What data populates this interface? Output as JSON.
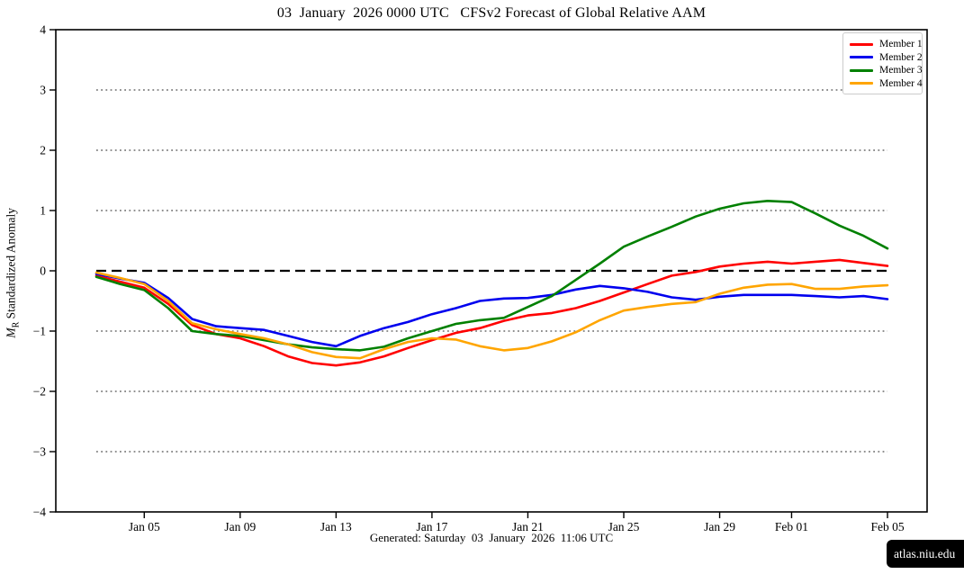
{
  "page": {
    "title": "03  January  2026 0000 UTC   CFSv2 Forecast of Global Relative AAM",
    "footer": "Generated: Saturday  03  January  2026  11:06 UTC",
    "watermark": "atlas.niu.edu"
  },
  "chart_data": {
    "type": "line",
    "title": "03  January  2026 0000 UTC   CFSv2 Forecast of Global Relative AAM",
    "xlabel": "",
    "ylabel": "M_R Standardized Anomaly",
    "ylabel_parts": {
      "var": "M",
      "sub": "R",
      "rest": " Standardized Anomaly"
    },
    "ylim": [
      -4,
      4
    ],
    "x_start_date": "Jan 03",
    "x_end_date": "Feb 05",
    "x_days_span": 33,
    "x_axis": {
      "tick_day_index": [
        2,
        6,
        10,
        14,
        18,
        22,
        26,
        29,
        33
      ],
      "tick_labels": [
        "Jan 05",
        "Jan 09",
        "Jan 13",
        "Jan 17",
        "Jan 21",
        "Jan 25",
        "Jan 29",
        "Feb 01",
        "Feb 05"
      ]
    },
    "y_axis": {
      "tick_values": [
        4,
        3,
        2,
        1,
        0,
        -1,
        -2,
        -3,
        -4
      ],
      "tick_labels": [
        "4",
        "3",
        "2",
        "1",
        "0",
        "−1",
        "−2",
        "−3",
        "−4"
      ]
    },
    "grid": {
      "dotted_values": [
        3,
        2,
        1,
        -1,
        -2,
        -3
      ],
      "dotted_color": "#808080",
      "zero_line_dashed": true,
      "zero_line_color": "#000000"
    },
    "legend_position": "top-right",
    "series": [
      {
        "name": "Member 1",
        "color": "#ff0000",
        "values": [
          -0.08,
          -0.18,
          -0.28,
          -0.55,
          -0.9,
          -1.05,
          -1.12,
          -1.25,
          -1.42,
          -1.53,
          -1.57,
          -1.52,
          -1.42,
          -1.28,
          -1.15,
          -1.03,
          -0.95,
          -0.83,
          -0.74,
          -0.7,
          -0.62,
          -0.5,
          -0.36,
          -0.22,
          -0.08,
          -0.02,
          0.07,
          0.12,
          0.15,
          0.12,
          0.15,
          0.18,
          0.13,
          0.08
        ]
      },
      {
        "name": "Member 2",
        "color": "#0000ee",
        "values": [
          -0.05,
          -0.13,
          -0.2,
          -0.45,
          -0.8,
          -0.92,
          -0.95,
          -0.98,
          -1.08,
          -1.18,
          -1.25,
          -1.08,
          -0.95,
          -0.85,
          -0.72,
          -0.62,
          -0.5,
          -0.46,
          -0.45,
          -0.4,
          -0.31,
          -0.25,
          -0.29,
          -0.35,
          -0.44,
          -0.48,
          -0.43,
          -0.4,
          -0.4,
          -0.4,
          -0.42,
          -0.44,
          -0.42,
          -0.47
        ]
      },
      {
        "name": "Member 3",
        "color": "#008000",
        "values": [
          -0.1,
          -0.22,
          -0.32,
          -0.62,
          -1.0,
          -1.05,
          -1.08,
          -1.15,
          -1.22,
          -1.27,
          -1.3,
          -1.32,
          -1.26,
          -1.12,
          -1.0,
          -0.88,
          -0.82,
          -0.78,
          -0.6,
          -0.42,
          -0.15,
          0.12,
          0.4,
          0.57,
          0.73,
          0.9,
          1.03,
          1.12,
          1.16,
          1.14,
          0.95,
          0.75,
          0.58,
          0.37
        ]
      },
      {
        "name": "Member 4",
        "color": "#ffa500",
        "values": [
          -0.03,
          -0.12,
          -0.22,
          -0.5,
          -0.87,
          -0.97,
          -1.05,
          -1.12,
          -1.22,
          -1.35,
          -1.43,
          -1.45,
          -1.3,
          -1.18,
          -1.12,
          -1.14,
          -1.25,
          -1.32,
          -1.28,
          -1.17,
          -1.02,
          -0.82,
          -0.66,
          -0.6,
          -0.55,
          -0.52,
          -0.38,
          -0.28,
          -0.23,
          -0.22,
          -0.3,
          -0.3,
          -0.26,
          -0.24
        ]
      }
    ]
  }
}
